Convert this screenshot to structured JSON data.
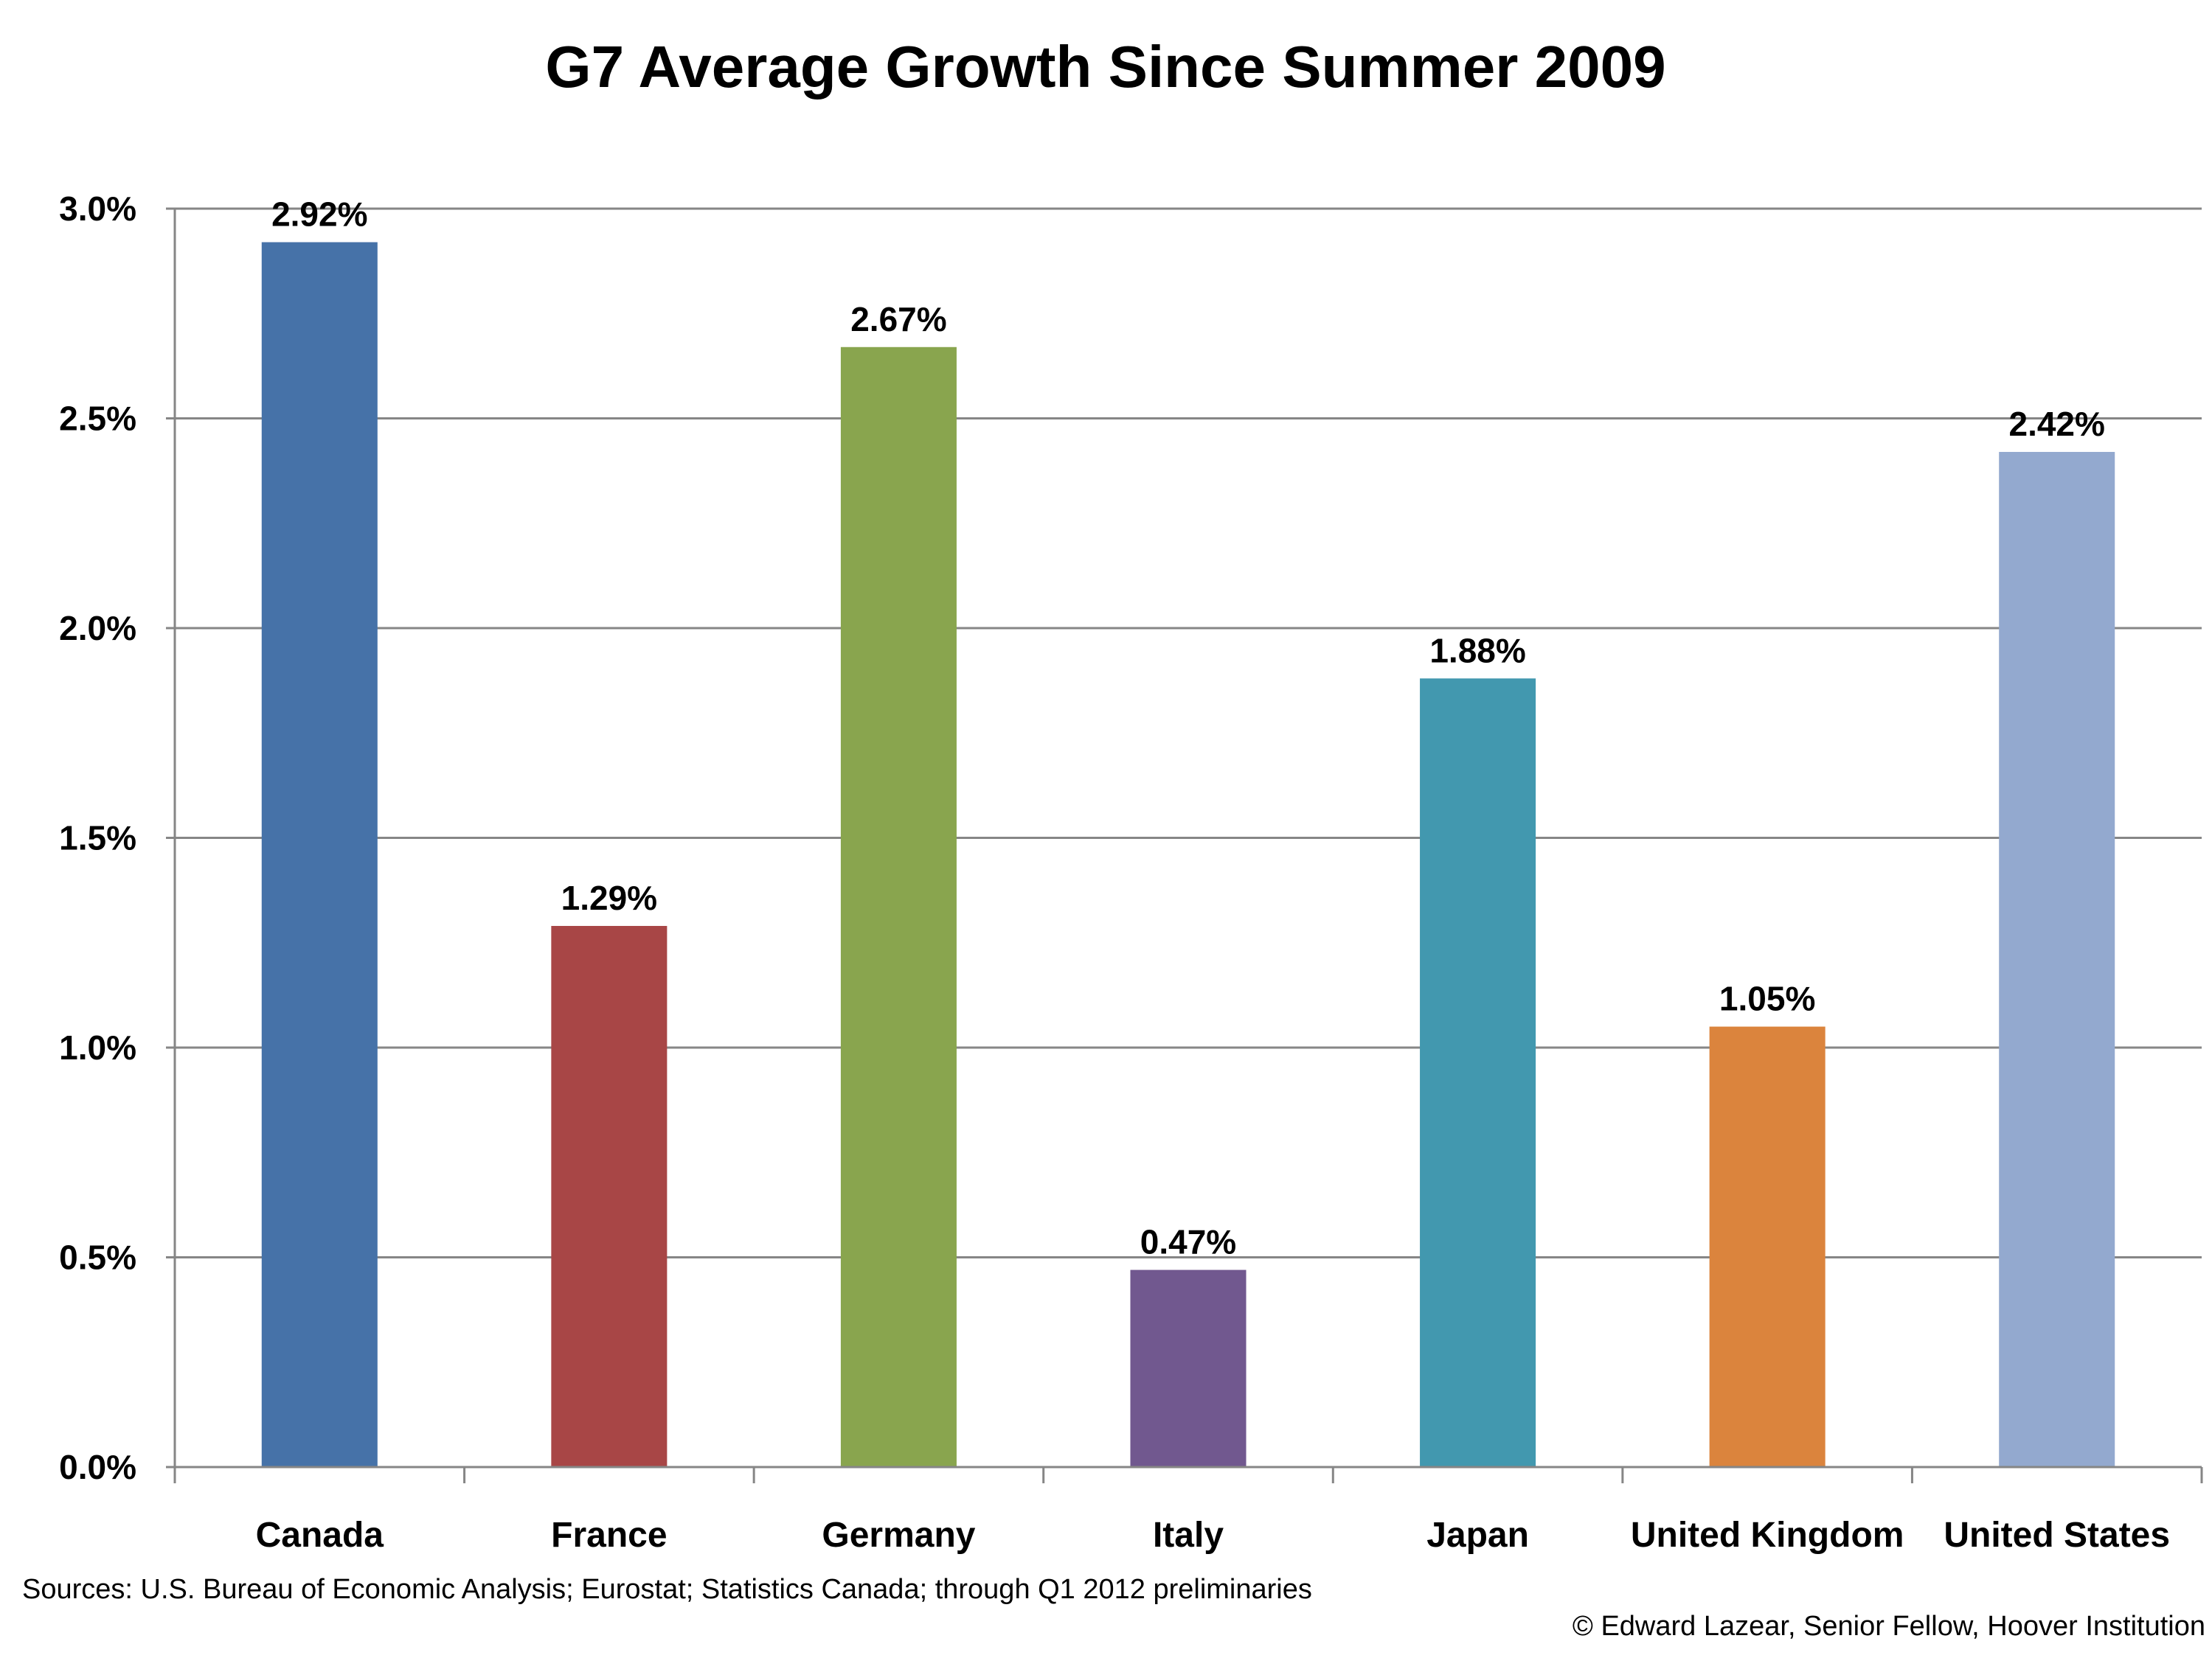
{
  "chart_data": {
    "type": "bar",
    "title": "G7 Average Growth Since Summer 2009",
    "categories": [
      "Canada",
      "France",
      "Germany",
      "Italy",
      "Japan",
      "United Kingdom",
      "United States"
    ],
    "values": [
      2.92,
      1.29,
      2.67,
      0.47,
      1.88,
      1.05,
      2.42
    ],
    "data_labels": [
      "2.92%",
      "1.29%",
      "2.67%",
      "0.47%",
      "1.88%",
      "1.05%",
      "2.42%"
    ],
    "colors": [
      "#4672A8",
      "#A84646",
      "#89A54E",
      "#71588F",
      "#4298AF",
      "#DB843D",
      "#93A9CF"
    ],
    "ylim": [
      0,
      3.0
    ],
    "yticks": [
      0,
      0.5,
      1.0,
      1.5,
      2.0,
      2.5,
      3.0
    ],
    "ytick_labels": [
      "0.0%",
      "0.5%",
      "1.0%",
      "1.5%",
      "2.0%",
      "2.5%",
      "3.0%"
    ],
    "xlabel": "",
    "ylabel": "",
    "grid": true,
    "gridline_color": "#868686"
  },
  "footer": {
    "sources": "Sources: U.S. Bureau of Economic Analysis; Eurostat; Statistics Canada; through Q1 2012 preliminaries",
    "credit": "© Edward Lazear, Senior Fellow, Hoover Institution"
  }
}
